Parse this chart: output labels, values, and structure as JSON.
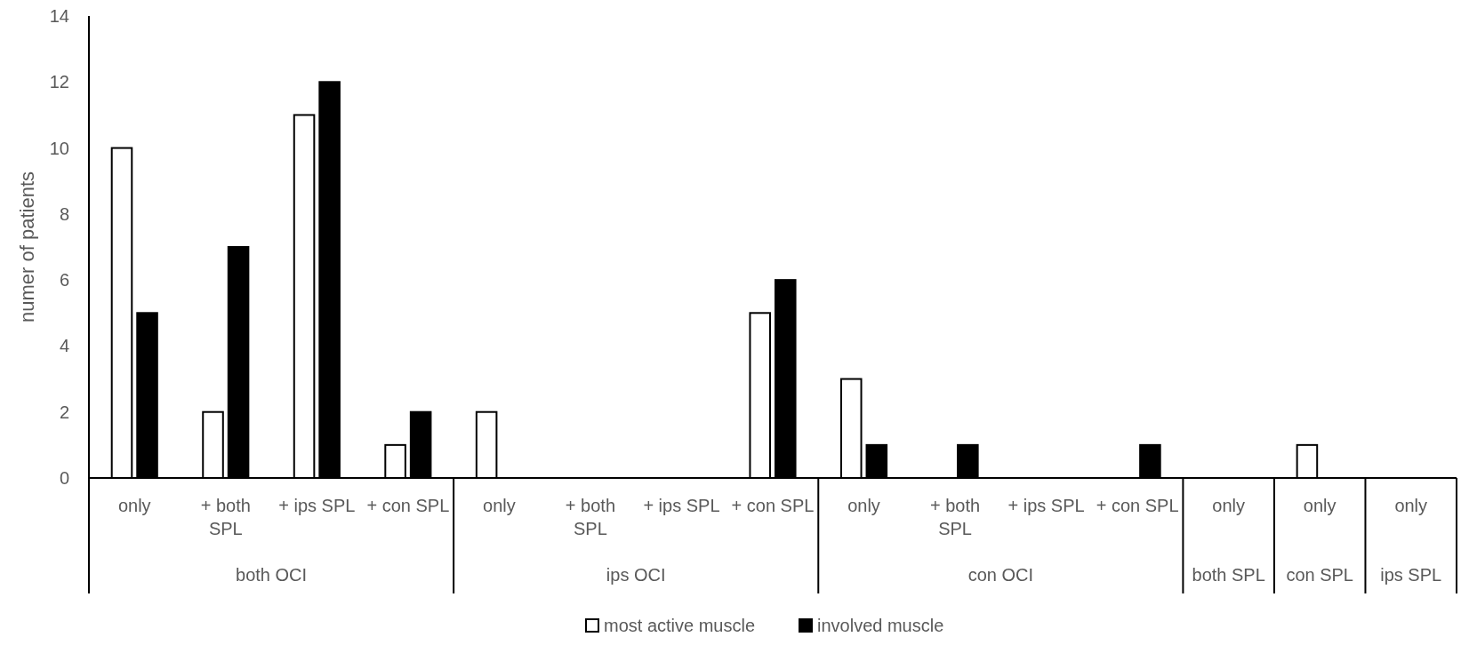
{
  "chart_data": {
    "type": "bar",
    "ylabel": "numer of patients",
    "categories": [
      "only",
      "+ both SPL",
      "+ ips SPL",
      "+ con SPL",
      "only",
      "+ both SPL",
      "+ ips SPL",
      "+ con SPL",
      "only",
      "+ both SPL",
      "+ ips SPL",
      "+ con SPL",
      "only",
      "only",
      "only"
    ],
    "annotations": [
      "both OCI",
      "ips OCI",
      "con OCI",
      "both SPL",
      "con SPL",
      "ips SPL"
    ],
    "series": [
      {
        "name": "most active muscle",
        "color": "#ffffff",
        "values": [
          10,
          2,
          11,
          1,
          2,
          0,
          0,
          5,
          3,
          0,
          0,
          0,
          0,
          1,
          0
        ]
      },
      {
        "name": "involved muscle",
        "color": "#000000",
        "values": [
          5,
          7,
          12,
          2,
          0,
          0,
          0,
          6,
          1,
          1,
          0,
          1,
          0,
          0,
          0
        ]
      }
    ],
    "ylim": [
      0,
      14
    ],
    "yticks": [
      0,
      2,
      4,
      6,
      8,
      10,
      12,
      14
    ],
    "grid": false,
    "legend": "bottom"
  }
}
